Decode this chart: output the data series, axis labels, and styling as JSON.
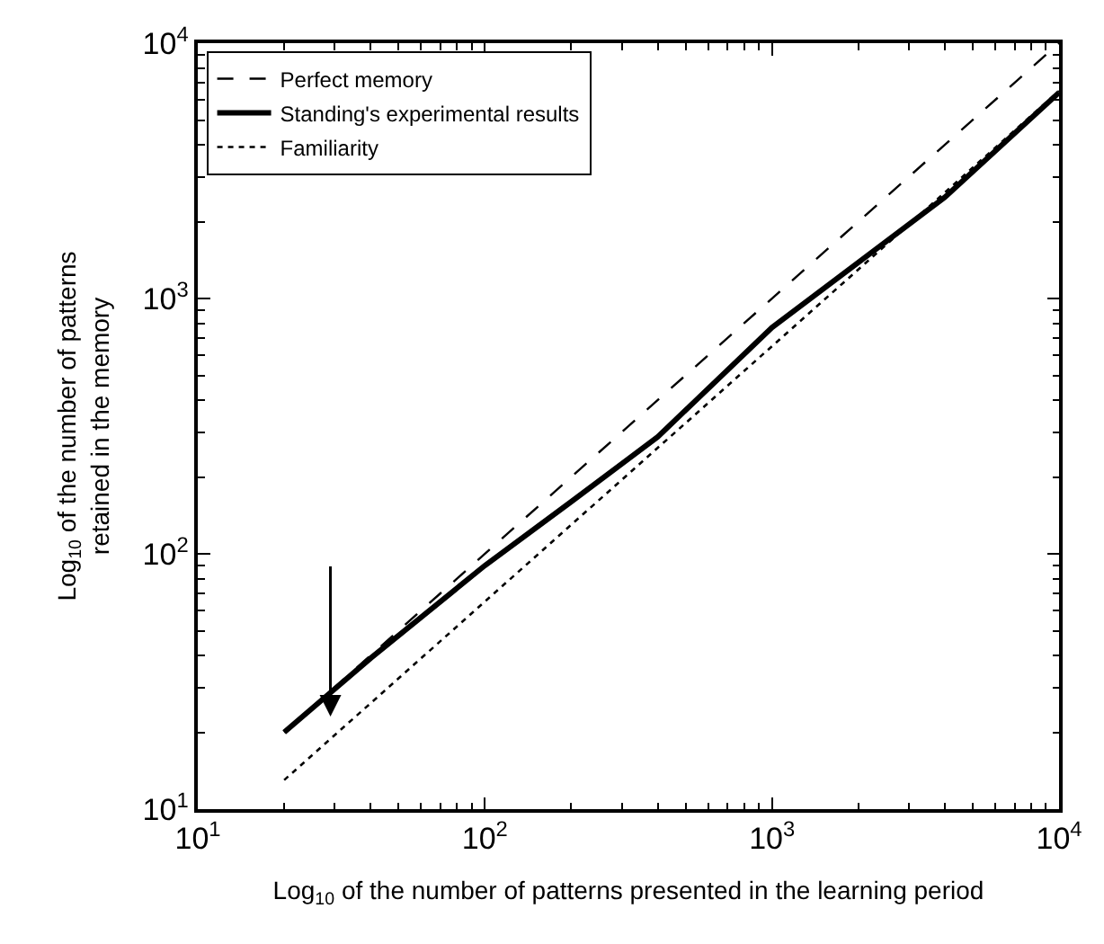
{
  "chart_data": {
    "type": "line",
    "log": "xy",
    "xlabel": "Log$_{10}$ of the number of patterns presented in the learning period",
    "ylabel": "Log$_{10}$ of the number of patterns\nretained in the memory",
    "xlim": [
      10,
      10000
    ],
    "ylim": [
      10,
      10000
    ],
    "xticks": [
      {
        "value": 10,
        "label": "10$^{1}$"
      },
      {
        "value": 100,
        "label": "10$^{2}$"
      },
      {
        "value": 1000,
        "label": "10$^{3}$"
      },
      {
        "value": 10000,
        "label": "10$^{4}$"
      }
    ],
    "yticks": [
      {
        "value": 10,
        "label": "10$^{1}$"
      },
      {
        "value": 100,
        "label": "10$^{2}$"
      },
      {
        "value": 1000,
        "label": "10$^{3}$"
      },
      {
        "value": 10000,
        "label": "10$^{4}$"
      }
    ],
    "legend": "top left",
    "marker": "none",
    "series": [
      {
        "name": "Perfect memory",
        "color": "#000000",
        "line_style": "dashed",
        "x": [
          20,
          10000
        ],
        "values": [
          20,
          10000
        ]
      },
      {
        "name": "Standing's experimental results",
        "color": "#000000",
        "line_style": "solid",
        "x": [
          20,
          40,
          100,
          200,
          400,
          1000,
          4000,
          10000
        ],
        "values": [
          20,
          39,
          90,
          160,
          287,
          770,
          2490,
          6400
        ]
      },
      {
        "name": "Familiarity",
        "color": "#000000",
        "line_style": "dotted",
        "x": [
          20,
          10000
        ],
        "values": [
          13,
          6500
        ]
      }
    ]
  }
}
